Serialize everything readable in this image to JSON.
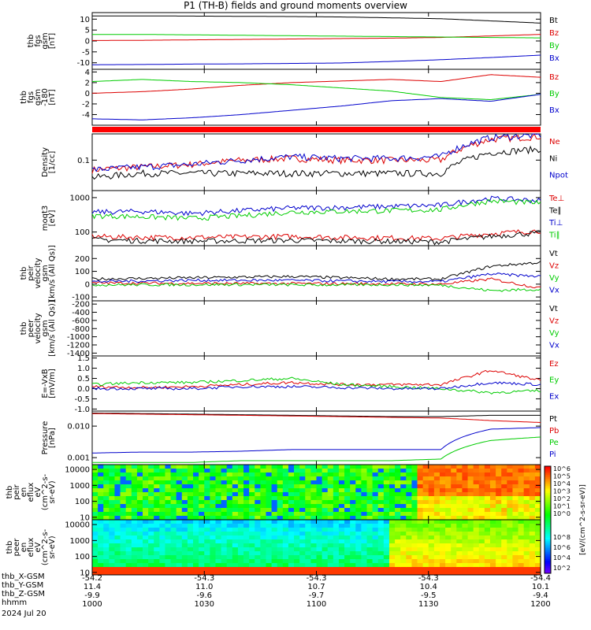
{
  "title": "P1 (TH-B) fields and ground moments overview",
  "chart_data": {
    "type": "line",
    "x_axis": {
      "row_labels": [
        "thb_X-GSM",
        "thb_Y-GSM",
        "thb_Z-GSM",
        "hhmm"
      ],
      "columns": [
        [
          "-54.2",
          "11.4",
          "-9.9",
          "1000"
        ],
        [
          "-54.3",
          "11.0",
          "-9.6",
          "1030"
        ],
        [
          "-54.3",
          "10.7",
          "-9.7",
          "1100"
        ],
        [
          "-54.3",
          "10.4",
          "-9.5",
          "1130"
        ],
        [
          "-54.4",
          "10.1",
          "-9.4",
          "1200"
        ]
      ],
      "date": "2024 Jul 20"
    },
    "panels": [
      {
        "id": "fgs_gsm",
        "ylabel_lines": [
          "thb",
          "fgs",
          "gsm",
          "[nT]"
        ],
        "yticks": [
          "10",
          "5",
          "0",
          "-5",
          "-10"
        ],
        "ylim": [
          -13,
          13
        ],
        "series": [
          {
            "name": "Bt",
            "color": "#000000",
            "values": [
              11.5,
              11.5,
              11.4,
              11.3,
              11.2,
              11.0,
              10.6,
              10.2,
              9.2,
              8.2
            ]
          },
          {
            "name": "Bz",
            "color": "#dd0000",
            "values": [
              0.2,
              0.3,
              0.5,
              0.7,
              0.9,
              1.1,
              1.3,
              1.6,
              2.3,
              3.0
            ]
          },
          {
            "name": "By",
            "color": "#00cc00",
            "values": [
              3.0,
              3.0,
              2.8,
              2.6,
              2.4,
              2.2,
              2.0,
              1.8,
              1.6,
              1.4
            ]
          },
          {
            "name": "Bx",
            "color": "#0000cc",
            "values": [
              -10.9,
              -10.8,
              -10.6,
              -10.5,
              -10.3,
              -10.1,
              -9.4,
              -8.6,
              -7.6,
              -6.5
            ]
          }
        ]
      },
      {
        "id": "fgs_gse_rot",
        "ylabel_lines": [
          "thb",
          "fgs",
          "gsm",
          "-180",
          "[nT]"
        ],
        "yticks": [
          "4",
          "2",
          "0",
          "-2",
          "-4"
        ],
        "ylim": [
          -6,
          4.5
        ],
        "series": [
          {
            "name": "Bz",
            "color": "#dd0000",
            "values": [
              0.0,
              0.3,
              0.8,
              1.5,
              2.0,
              2.3,
              2.6,
              2.2,
              3.5,
              3.0
            ]
          },
          {
            "name": "By",
            "color": "#00cc00",
            "values": [
              2.2,
              2.6,
              2.2,
              2.0,
              1.6,
              1.0,
              0.4,
              -0.8,
              -1.2,
              -0.2
            ]
          },
          {
            "name": "Bx",
            "color": "#0000cc",
            "values": [
              -4.8,
              -5.0,
              -4.6,
              -4.0,
              -3.2,
              -2.4,
              -1.4,
              -1.0,
              -1.5,
              -0.2
            ]
          }
        ]
      },
      {
        "id": "density",
        "ylabel_lines": [
          "Density",
          "[1/cc]"
        ],
        "yticks": [
          "0.1"
        ],
        "ylim": [
          0.02,
          0.4
        ],
        "log": true,
        "series": [
          {
            "name": "Ne",
            "color": "#dd0000",
            "values": [
              0.06,
              0.07,
              0.08,
              0.1,
              0.11,
              0.1,
              0.1,
              0.1,
              0.3,
              0.35
            ]
          },
          {
            "name": "Ni",
            "color": "#000000",
            "values": [
              0.04,
              0.05,
              0.05,
              0.05,
              0.05,
              0.05,
              0.05,
              0.05,
              0.15,
              0.18
            ]
          },
          {
            "name": "Npot",
            "color": "#0000cc",
            "values": [
              0.06,
              0.07,
              0.08,
              0.1,
              0.12,
              0.11,
              0.11,
              0.12,
              0.33,
              0.38
            ]
          }
        ]
      },
      {
        "id": "temperature",
        "ylabel_lines": [
          "moqt3",
          "[eV]"
        ],
        "yticks": [
          "1000",
          "100"
        ],
        "ylim": [
          40,
          1600
        ],
        "log": true,
        "series": [
          {
            "name": "Te⊥",
            "color": "#dd0000",
            "values": [
              75,
              70,
              70,
              72,
              75,
              70,
              68,
              65,
              90,
              110
            ]
          },
          {
            "name": "Te∥",
            "color": "#000000",
            "values": [
              60,
              56,
              55,
              56,
              58,
              55,
              54,
              52,
              75,
              95
            ]
          },
          {
            "name": "Ti⊥",
            "color": "#0000cc",
            "values": [
              380,
              400,
              350,
              420,
              500,
              520,
              560,
              600,
              950,
              820
            ]
          },
          {
            "name": "Ti∥",
            "color": "#00cc00",
            "values": [
              300,
              280,
              250,
              300,
              380,
              400,
              420,
              450,
              800,
              700
            ]
          }
        ]
      },
      {
        "id": "peir_velocity",
        "ylabel_lines": [
          "thb",
          "peir",
          "velocity",
          "gsm",
          "[km/s (All Qs)]"
        ],
        "yticks": [
          "200",
          "100",
          "0",
          "-100"
        ],
        "ylim": [
          -130,
          300
        ],
        "series": [
          {
            "name": "Vt",
            "color": "#000000",
            "values": [
              40,
              45,
              50,
              55,
              60,
              50,
              40,
              40,
              140,
              170
            ]
          },
          {
            "name": "Vz",
            "color": "#dd0000",
            "values": [
              10,
              8,
              6,
              5,
              5,
              4,
              2,
              0,
              40,
              -30
            ]
          },
          {
            "name": "Vy",
            "color": "#00cc00",
            "values": [
              -5,
              -5,
              -4,
              -3,
              -5,
              -6,
              -4,
              -8,
              -50,
              -40
            ]
          },
          {
            "name": "Vx",
            "color": "#0000cc",
            "values": [
              20,
              25,
              30,
              30,
              30,
              25,
              20,
              20,
              80,
              60
            ]
          }
        ]
      },
      {
        "id": "peer_velocity",
        "ylabel_lines": [
          "thb",
          "peer",
          "velocity",
          "gsm",
          "[km/s (All Qs)]"
        ],
        "yticks": [
          "-200",
          "-400",
          "-600",
          "-800",
          "-1000",
          "-1200",
          "-1400"
        ],
        "ylim": [
          -1470,
          -120
        ],
        "series": [
          {
            "name": "Vt",
            "color": "#000000",
            "values": []
          },
          {
            "name": "Vz",
            "color": "#dd0000",
            "values": []
          },
          {
            "name": "Vy",
            "color": "#00cc00",
            "values": []
          },
          {
            "name": "Vx",
            "color": "#0000cc",
            "values": []
          }
        ]
      },
      {
        "id": "efield",
        "ylabel_lines": [
          "E=-VxB",
          "[mV/m]"
        ],
        "yticks": [
          "1.5",
          "1.0",
          "0.5",
          "0.0",
          "-0.5",
          "-1.0"
        ],
        "ylim": [
          -1.1,
          1.6
        ],
        "series": [
          {
            "name": "Ez",
            "color": "#dd0000",
            "values": [
              0.1,
              0.05,
              0.1,
              0.2,
              0.3,
              0.2,
              0.2,
              0.2,
              0.9,
              0.4
            ]
          },
          {
            "name": "Ey",
            "color": "#00cc00",
            "values": [
              0.2,
              0.3,
              0.3,
              0.4,
              0.5,
              0.2,
              0.1,
              0.0,
              -0.2,
              -0.1
            ]
          },
          {
            "name": "Ex",
            "color": "#0000cc",
            "values": [
              0.0,
              0.0,
              0.0,
              0.1,
              0.1,
              0.05,
              0.0,
              0.0,
              0.3,
              0.2
            ]
          }
        ]
      },
      {
        "id": "pressure",
        "ylabel_lines": [
          "Pressure",
          "[nPa]"
        ],
        "yticks": [
          "0.010",
          "0.001"
        ],
        "ylim": [
          0.0006,
          0.03
        ],
        "log": true,
        "series": [
          {
            "name": "Pt",
            "color": "#000000",
            "values": [
              0.026,
              0.025,
              0.024,
              0.023,
              0.022,
              0.021,
              0.02,
              0.02,
              0.022,
              0.022
            ]
          },
          {
            "name": "Pb",
            "color": "#dd0000",
            "values": [
              0.025,
              0.024,
              0.023,
              0.022,
              0.021,
              0.02,
              0.019,
              0.018,
              0.015,
              0.013
            ]
          },
          {
            "name": "Pe",
            "color": "#00cc00",
            "values": [
              0.0007,
              0.0007,
              0.0007,
              0.0008,
              0.0008,
              0.0008,
              0.0008,
              0.0009,
              0.0035,
              0.0045
            ]
          },
          {
            "name": "Pi",
            "color": "#0000cc",
            "values": [
              0.0014,
              0.0015,
              0.0015,
              0.0016,
              0.0018,
              0.0018,
              0.0018,
              0.0018,
              0.008,
              0.009
            ]
          }
        ]
      },
      {
        "id": "peir_eflux",
        "type": "heatmap",
        "ylabel_lines": [
          "thb",
          "peir",
          "en",
          "eflux",
          "eV",
          "(cm^2-s-",
          "sr-eV)"
        ],
        "yticks": [
          "10000",
          "1000",
          "100",
          "10"
        ],
        "ylim": [
          7,
          20000
        ]
      },
      {
        "id": "peer_eflux",
        "type": "heatmap",
        "ylabel_lines": [
          "thb",
          "peer",
          "en",
          "eflux",
          "eV",
          "(cm^2-s-",
          "sr-eV)"
        ],
        "yticks": [
          "10000",
          "1000",
          "100",
          "10"
        ],
        "ylim": [
          7,
          20000
        ]
      }
    ],
    "colorbar": {
      "ticks": [
        "10^6",
        "10^5",
        "10^4",
        "10^3",
        "10^2",
        "10^1",
        "10^0"
      ],
      "lower_ticks": [
        "10^8",
        "10^6",
        "10^4",
        "10^2"
      ],
      "label": "[eV/(cm^2-s-sr-eV)]",
      "label2": "[eV/(cm^2-s-sr-eV) (All Qs)]"
    }
  }
}
